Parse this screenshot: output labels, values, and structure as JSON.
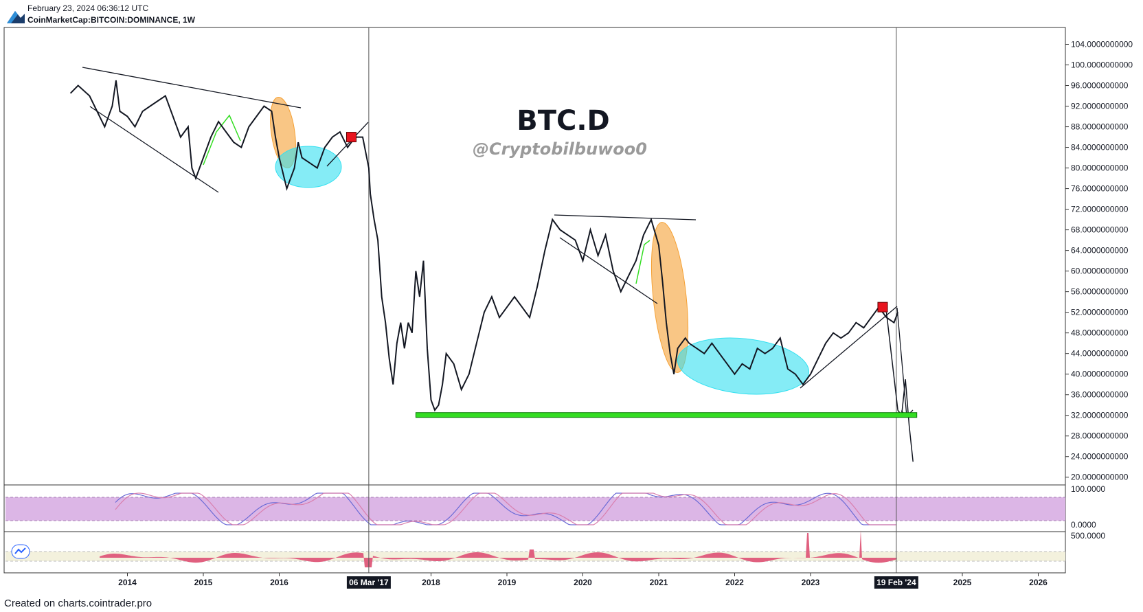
{
  "header": {
    "datetime": "February 23, 2024 06:36:12 UTC",
    "symbol": "CoinMarketCap:BITCOIN:DOMINANCE, 1W"
  },
  "footer": {
    "credit": "Created on charts.cointrader.pro"
  },
  "colors": {
    "price_line": "#131722",
    "support_line": "#33dd22",
    "orange_zone": "#f5a033",
    "cyan_zone": "#33e0f0",
    "stoch_band": "#dcb6e6",
    "stoch_k": "#6b6bd6",
    "stoch_d": "#d97fae",
    "hist": "#e0607f",
    "marker": "#e8141e"
  },
  "chart_data": [
    {
      "type": "line",
      "title": "BTC.D",
      "watermark": "@Cryptobilbuwoo0",
      "ylim": [
        18.5,
        106
      ],
      "y_ticks": [
        "104.0000000000",
        "100.0000000000",
        "96.0000000000",
        "92.0000000000",
        "88.0000000000",
        "84.0000000000",
        "80.0000000000",
        "76.0000000000",
        "72.0000000000",
        "68.0000000000",
        "64.0000000000",
        "60.0000000000",
        "56.0000000000",
        "52.0000000000",
        "48.0000000000",
        "44.0000000000",
        "40.0000000000",
        "36.0000000000",
        "32.0000000000",
        "28.0000000000",
        "24.0000000000",
        "20.0000000000"
      ],
      "x_ticks": [
        "2014",
        "2015",
        "2016",
        "2018",
        "2019",
        "2020",
        "2021",
        "2022",
        "2023",
        "2025",
        "2026"
      ],
      "x_highlights": [
        "06 Mar '17",
        "19 Feb '24"
      ],
      "series": [
        {
          "x": [
            2013.25,
            2013.35,
            2013.5,
            2013.6,
            2013.7,
            2013.8,
            2013.85,
            2013.9,
            2014.0,
            2014.1,
            2014.2,
            2014.3,
            2014.4,
            2014.5,
            2014.6,
            2014.7,
            2014.8,
            2014.85,
            2014.9,
            2014.95,
            2015.0,
            2015.1,
            2015.2,
            2015.3,
            2015.4,
            2015.5,
            2015.6,
            2015.7,
            2015.8,
            2015.9,
            2015.95,
            2016.0,
            2016.1,
            2016.2,
            2016.25,
            2016.3,
            2016.4,
            2016.5,
            2016.6,
            2016.7,
            2016.8,
            2016.9,
            2017.0,
            2017.1,
            2017.18,
            2017.2,
            2017.25,
            2017.3,
            2017.35,
            2017.4,
            2017.45,
            2017.5,
            2017.55,
            2017.6,
            2017.65,
            2017.7,
            2017.75,
            2017.8,
            2017.85,
            2017.9,
            2017.95,
            2018.0,
            2018.05,
            2018.1,
            2018.15,
            2018.2,
            2018.3,
            2018.4,
            2018.5,
            2018.6,
            2018.7,
            2018.8,
            2018.9,
            2019.0,
            2019.1,
            2019.2,
            2019.3,
            2019.4,
            2019.5,
            2019.6,
            2019.7,
            2019.8,
            2019.9,
            2020.0,
            2020.1,
            2020.2,
            2020.3,
            2020.4,
            2020.5,
            2020.6,
            2020.7,
            2020.8,
            2020.9,
            2021.0,
            2021.05,
            2021.1,
            2021.15,
            2021.2,
            2021.25,
            2021.3,
            2021.35,
            2021.4,
            2021.5,
            2021.6,
            2021.7,
            2021.8,
            2021.9,
            2022.0,
            2022.1,
            2022.2,
            2022.3,
            2022.4,
            2022.5,
            2022.6,
            2022.7,
            2022.8,
            2022.9,
            2023.0,
            2023.1,
            2023.2,
            2023.3,
            2023.4,
            2023.5,
            2023.6,
            2023.7,
            2023.8,
            2023.9,
            2024.0,
            2024.1,
            2024.15
          ],
          "values": [
            94.5,
            96,
            94,
            91,
            88,
            92,
            97,
            91,
            90,
            88,
            91,
            92,
            93,
            94,
            90,
            86,
            88,
            80,
            78,
            80,
            82,
            86,
            89,
            87,
            85,
            84,
            88,
            90,
            92,
            91,
            86,
            82,
            76,
            80,
            85,
            82,
            81,
            80,
            84,
            86,
            87,
            84,
            86,
            86,
            80,
            75,
            70,
            66,
            55,
            50,
            43,
            38,
            46,
            50,
            45,
            50,
            48,
            60,
            55,
            62,
            45,
            35,
            33,
            34,
            38,
            44,
            42,
            37,
            40,
            46,
            52,
            55,
            51,
            53,
            55,
            53,
            51,
            57,
            64,
            70,
            68,
            67,
            66,
            62,
            68,
            63,
            67,
            60,
            56,
            59,
            62,
            67,
            70,
            65,
            58,
            50,
            44,
            40,
            45,
            46,
            47,
            46,
            45,
            44,
            46,
            44,
            42,
            40,
            42,
            41,
            45,
            44,
            45,
            47,
            41,
            40,
            38,
            40,
            43,
            46,
            48,
            47,
            48,
            50,
            49,
            51,
            53,
            51,
            50,
            52
          ]
        },
        {
          "name": "projection",
          "x": [
            2024.0,
            2024.15,
            2024.2,
            2024.25,
            2024.3,
            2024.35
          ],
          "values": [
            52,
            33,
            32,
            39,
            30,
            23
          ]
        }
      ],
      "support_level": {
        "value": 32,
        "x_range": [
          2017.8,
          2024.4
        ]
      },
      "markers": [
        {
          "x": 2016.95,
          "y": 86
        },
        {
          "x": 2023.95,
          "y": 53
        }
      ]
    },
    {
      "type": "line",
      "name": "stochastic",
      "ylim": [
        0,
        100
      ],
      "y_ticks": [
        "100.0000",
        "0.0000"
      ],
      "band": [
        20,
        80
      ]
    },
    {
      "type": "area",
      "name": "histogram",
      "y_ticks": [
        "500.0000"
      ],
      "baseline": 0
    }
  ]
}
